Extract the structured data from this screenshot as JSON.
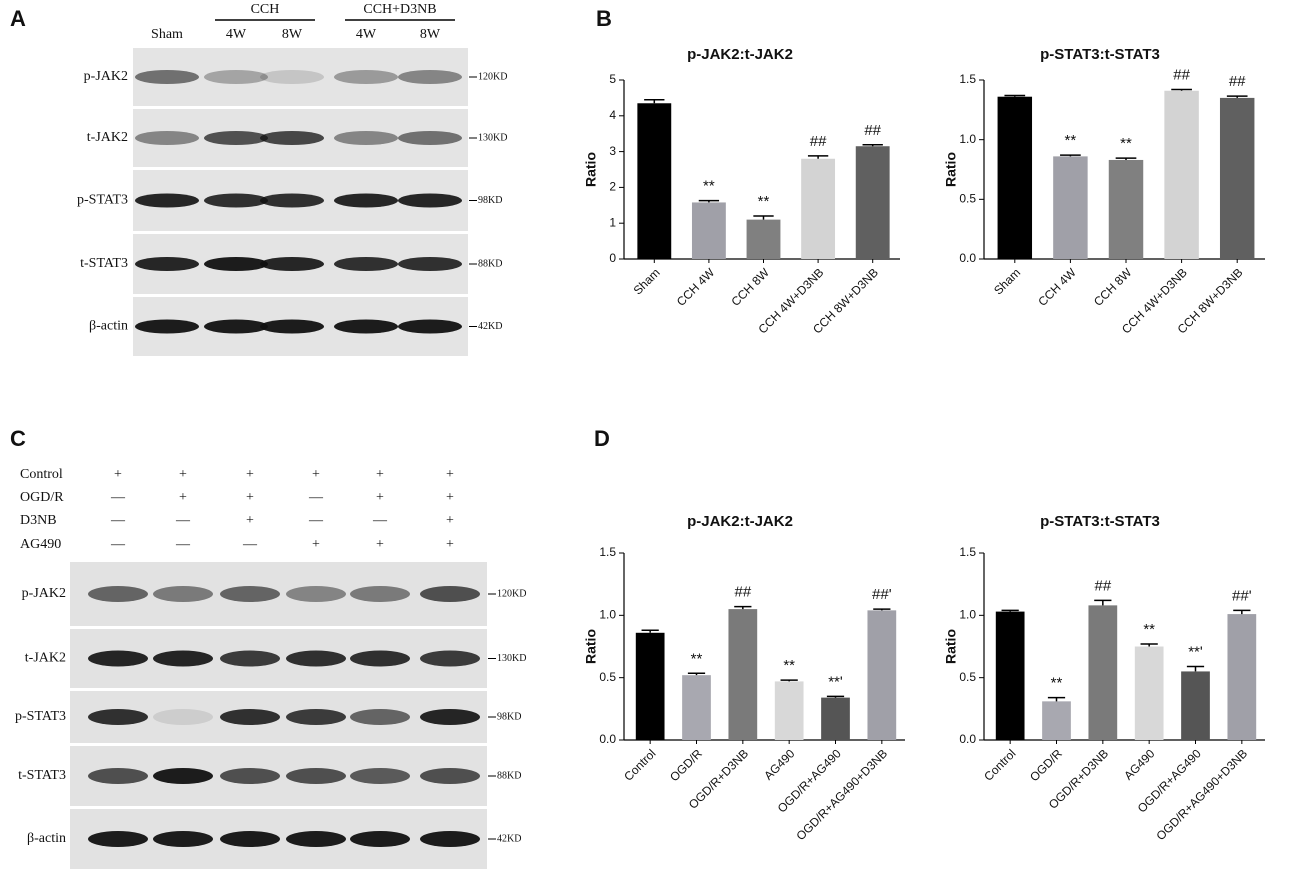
{
  "panel_labels": [
    "A",
    "B",
    "C",
    "D"
  ],
  "blot_a": {
    "lanes": [
      "Sham",
      "4W",
      "8W",
      "4W",
      "8W"
    ],
    "groups": [
      "CCH",
      "CCH+D3NB"
    ],
    "rows": [
      "p-JAK2",
      "t-JAK2",
      "p-STAT3",
      "t-STAT3",
      "β-actin"
    ],
    "markers": [
      "120KD",
      "130KD",
      "98KD",
      "88KD",
      "42KD"
    ]
  },
  "blot_c": {
    "treatments": [
      {
        "name": "Control",
        "signs": [
          "+",
          "+",
          "+",
          "+",
          "+",
          "+"
        ]
      },
      {
        "name": "OGD/R",
        "signs": [
          "—",
          "+",
          "+",
          "—",
          "+",
          "+"
        ]
      },
      {
        "name": "D3NB",
        "signs": [
          "—",
          "—",
          "+",
          "—",
          "—",
          "+"
        ]
      },
      {
        "name": "AG490",
        "signs": [
          "—",
          "—",
          "—",
          "+",
          "+",
          "+"
        ]
      }
    ],
    "rows": [
      "p-JAK2",
      "t-JAK2",
      "p-STAT3",
      "t-STAT3",
      "β-actin"
    ],
    "markers": [
      "120KD",
      "130KD",
      "98KD",
      "88KD",
      "42KD"
    ]
  },
  "chart_data": [
    {
      "type": "bar",
      "title": "p-JAK2:t-JAK2",
      "y_label": "Ratio",
      "categories": [
        "Sham",
        "CCH 4W",
        "CCH 8W",
        "CCH 4W+D3NB",
        "CCH 8W+D3NB"
      ],
      "values": [
        4.35,
        1.58,
        1.1,
        2.8,
        3.15
      ],
      "errors": [
        0.1,
        0.05,
        0.1,
        0.08,
        0.04
      ],
      "annotations": [
        null,
        "**",
        "**",
        "##",
        "##"
      ],
      "colors": [
        "#000000",
        "#a0a0a8",
        "#808080",
        "#d3d3d3",
        "#606060"
      ],
      "ylim": [
        0,
        5
      ],
      "yticks": [
        0,
        1,
        2,
        3,
        4,
        5
      ]
    },
    {
      "type": "bar",
      "title": "p-STAT3:t-STAT3",
      "y_label": "Ratio",
      "categories": [
        "Sham",
        "CCH 4W",
        "CCH 8W",
        "CCH 4W+D3NB",
        "CCH 8W+D3NB"
      ],
      "values": [
        1.36,
        0.86,
        0.83,
        1.41,
        1.35
      ],
      "errors": [
        0.01,
        0.01,
        0.015,
        0.01,
        0.015
      ],
      "annotations": [
        null,
        "**",
        "**",
        "##",
        "##"
      ],
      "colors": [
        "#000000",
        "#a0a0a8",
        "#808080",
        "#d3d3d3",
        "#606060"
      ],
      "ylim": [
        0,
        1.5
      ],
      "yticks": [
        {
          "value": 0,
          "label": "0.0"
        },
        0.5,
        {
          "value": 1,
          "label": "1.0"
        },
        1.5
      ]
    },
    {
      "type": "bar",
      "title": "p-JAK2:t-JAK2",
      "y_label": "Ratio",
      "categories": [
        "Control",
        "OGD/R",
        "OGD/R+D3NB",
        "AG490",
        "OGD/R+AG490",
        "OGD/R+AG490+D3NB"
      ],
      "values": [
        0.86,
        0.52,
        1.05,
        0.47,
        0.34,
        1.04
      ],
      "errors": [
        0.02,
        0.015,
        0.02,
        0.01,
        0.01,
        0.01
      ],
      "annotations": [
        null,
        "**",
        "##",
        "**",
        "**'",
        "##'"
      ],
      "colors": [
        "#000000",
        "#a8a8b0",
        "#7a7a7a",
        "#d8d8d8",
        "#555555",
        "#a0a0a8"
      ],
      "ylim": [
        0,
        1.5
      ],
      "yticks": [
        {
          "value": 0,
          "label": "0.0"
        },
        0.5,
        {
          "value": 1,
          "label": "1.0"
        },
        1.5
      ]
    },
    {
      "type": "bar",
      "title": "p-STAT3:t-STAT3",
      "y_label": "Ratio",
      "categories": [
        "Control",
        "OGD/R",
        "OGD/R+D3NB",
        "AG490",
        "OGD/R+AG490",
        "OGD/R+AG490+D3NB"
      ],
      "values": [
        1.03,
        0.31,
        1.08,
        0.75,
        0.55,
        1.01
      ],
      "errors": [
        0.01,
        0.03,
        0.04,
        0.02,
        0.04,
        0.03
      ],
      "annotations": [
        null,
        "**",
        "##",
        "**",
        "**'",
        "##'"
      ],
      "colors": [
        "#000000",
        "#a8a8b0",
        "#7a7a7a",
        "#d8d8d8",
        "#555555",
        "#a0a0a8"
      ],
      "ylim": [
        0,
        1.5
      ],
      "yticks": [
        {
          "value": 0,
          "label": "0.0"
        },
        0.5,
        {
          "value": 1,
          "label": "1.0"
        },
        1.5
      ]
    }
  ]
}
